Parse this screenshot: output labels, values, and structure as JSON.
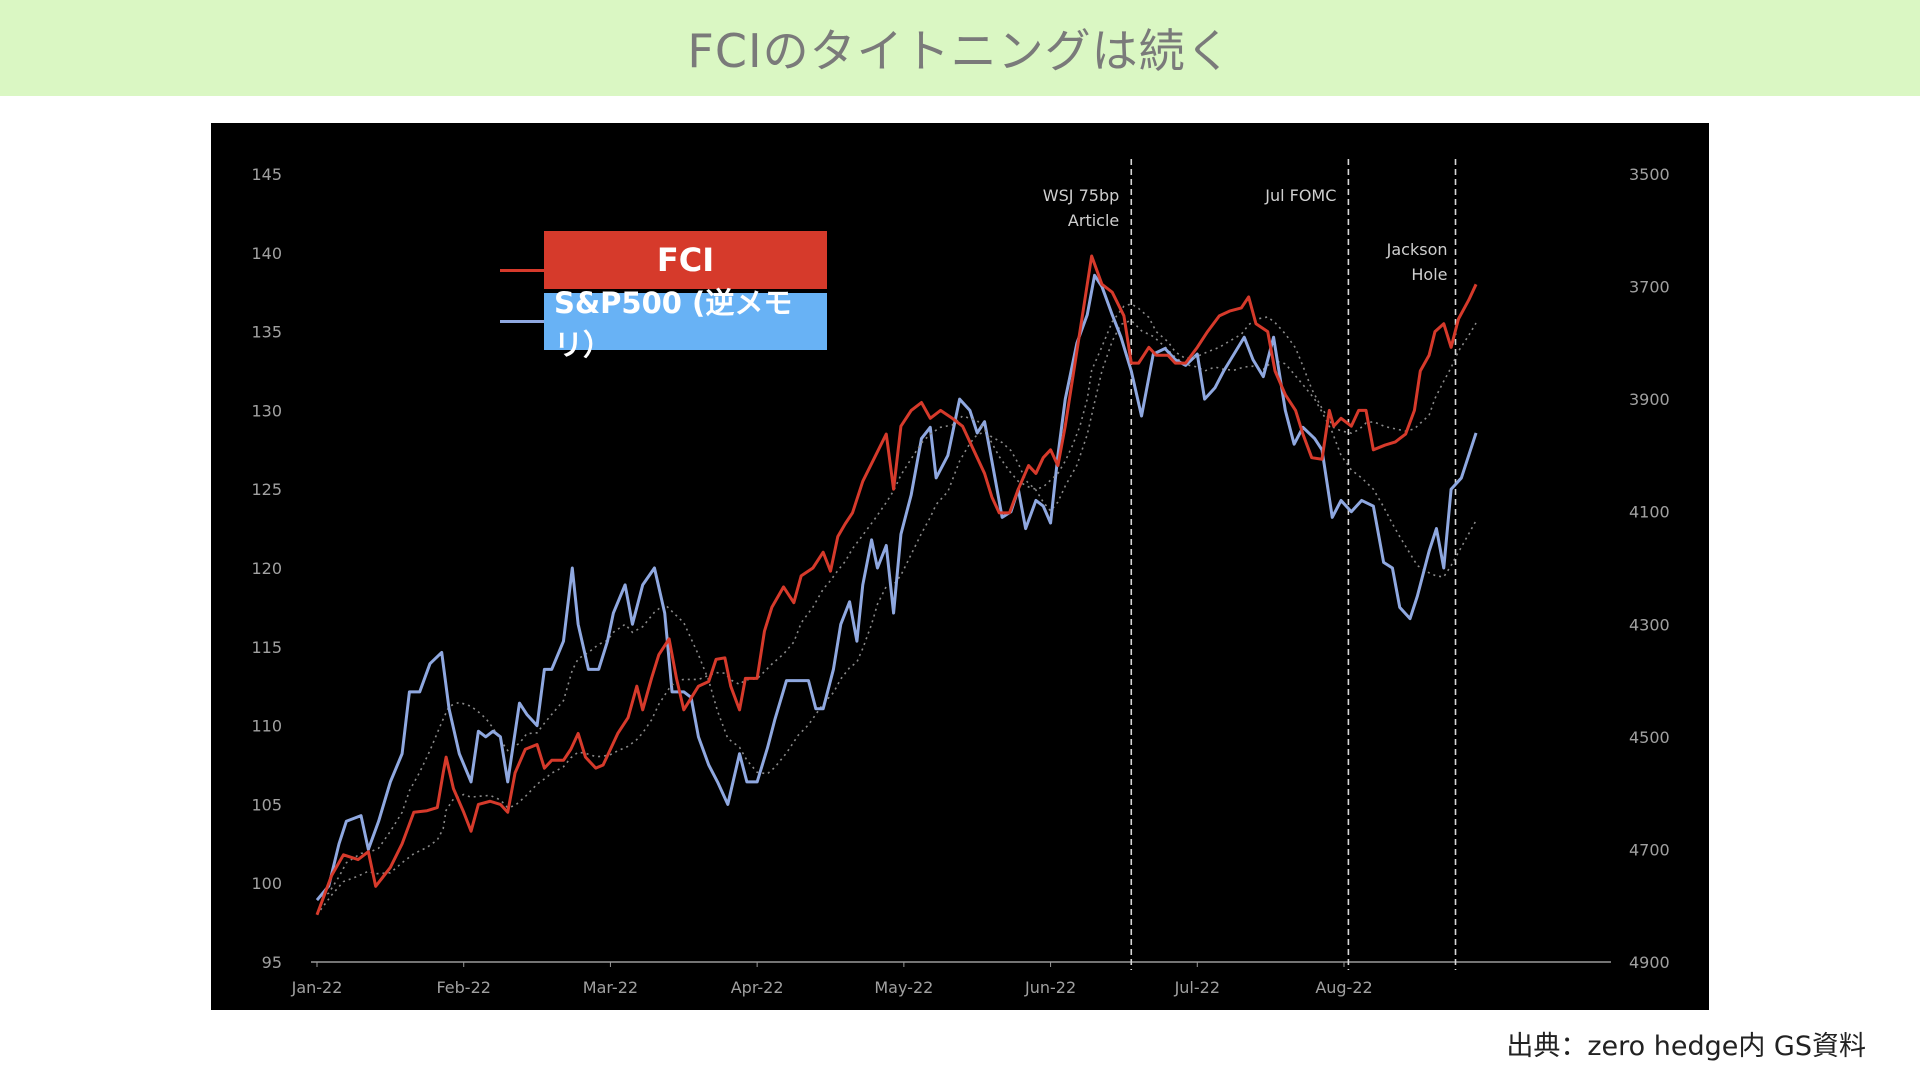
{
  "header": {
    "title": "FCIのタイトニングは続く",
    "background": "#daf7c3",
    "title_color": "#7a7a7a"
  },
  "source": "出典：zero hedge内 GS資料",
  "chart_data": {
    "type": "line",
    "title": "",
    "background": "#000000",
    "legend_position": "top-left",
    "grid": false,
    "x_labels": [
      "Jan-22",
      "Feb-22",
      "Mar-22",
      "Apr-22",
      "May-22",
      "Jun-22",
      "Jul-22",
      "Aug-22"
    ],
    "y_left": {
      "range": [
        95,
        145
      ],
      "ticks": [
        "145",
        "140",
        "135",
        "130",
        "125",
        "120",
        "115",
        "110",
        "105",
        "100",
        "95"
      ]
    },
    "y_right": {
      "range": [
        3500,
        4900
      ],
      "inverted": true,
      "ticks": [
        "3500",
        "3700",
        "3900",
        "4100",
        "4300",
        "4500",
        "4700",
        "4900"
      ]
    },
    "annotations": [
      {
        "x_month": 5.55,
        "lines": [
          "WSJ 75bp",
          "Article"
        ]
      },
      {
        "x_month": 7.03,
        "lines": [
          "Jul FOMC"
        ]
      },
      {
        "x_month": 7.76,
        "lines": [
          "Jackson",
          "Hole"
        ]
      }
    ],
    "series": [
      {
        "name": "FCI",
        "axis": "left",
        "color": "#d63a2b",
        "legend_box_color": "#d63a2b",
        "points": [
          [
            0.0,
            98.0
          ],
          [
            0.1,
            100.5
          ],
          [
            0.18,
            101.8
          ],
          [
            0.28,
            101.5
          ],
          [
            0.35,
            102.0
          ],
          [
            0.4,
            99.8
          ],
          [
            0.5,
            101.0
          ],
          [
            0.58,
            102.5
          ],
          [
            0.66,
            104.5
          ],
          [
            0.75,
            104.6
          ],
          [
            0.82,
            104.8
          ],
          [
            0.86,
            107.0
          ],
          [
            0.88,
            108.0
          ],
          [
            0.93,
            106.0
          ],
          [
            1.0,
            104.5
          ],
          [
            1.05,
            103.3
          ],
          [
            1.1,
            105.0
          ],
          [
            1.18,
            105.2
          ],
          [
            1.25,
            105.0
          ],
          [
            1.3,
            104.5
          ],
          [
            1.35,
            107.0
          ],
          [
            1.42,
            108.5
          ],
          [
            1.5,
            108.8
          ],
          [
            1.55,
            107.3
          ],
          [
            1.6,
            107.8
          ],
          [
            1.68,
            107.8
          ],
          [
            1.73,
            108.5
          ],
          [
            1.78,
            109.5
          ],
          [
            1.83,
            108.0
          ],
          [
            1.9,
            107.3
          ],
          [
            1.95,
            107.5
          ],
          [
            2.0,
            108.5
          ],
          [
            2.05,
            109.5
          ],
          [
            2.12,
            110.5
          ],
          [
            2.18,
            112.5
          ],
          [
            2.22,
            111.0
          ],
          [
            2.28,
            113.0
          ],
          [
            2.33,
            114.5
          ],
          [
            2.4,
            115.5
          ],
          [
            2.45,
            113.0
          ],
          [
            2.5,
            111.0
          ],
          [
            2.6,
            112.5
          ],
          [
            2.67,
            112.8
          ],
          [
            2.72,
            114.2
          ],
          [
            2.78,
            114.3
          ],
          [
            2.82,
            112.5
          ],
          [
            2.88,
            111.0
          ],
          [
            2.92,
            113.0
          ],
          [
            3.0,
            113.0
          ],
          [
            3.05,
            116.0
          ],
          [
            3.1,
            117.5
          ],
          [
            3.18,
            118.8
          ],
          [
            3.25,
            117.8
          ],
          [
            3.3,
            119.5
          ],
          [
            3.38,
            120.0
          ],
          [
            3.45,
            121.0
          ],
          [
            3.5,
            119.8
          ],
          [
            3.55,
            122.0
          ],
          [
            3.6,
            122.8
          ],
          [
            3.65,
            123.5
          ],
          [
            3.72,
            125.5
          ],
          [
            3.8,
            127.0
          ],
          [
            3.88,
            128.5
          ],
          [
            3.93,
            125.0
          ],
          [
            3.98,
            129.0
          ],
          [
            4.05,
            130.0
          ],
          [
            4.12,
            130.5
          ],
          [
            4.18,
            129.5
          ],
          [
            4.25,
            130.0
          ],
          [
            4.33,
            129.5
          ],
          [
            4.4,
            129.0
          ],
          [
            4.5,
            127.0
          ],
          [
            4.55,
            126.0
          ],
          [
            4.6,
            124.5
          ],
          [
            4.65,
            123.5
          ],
          [
            4.72,
            123.5
          ],
          [
            4.78,
            125.0
          ],
          [
            4.85,
            126.5
          ],
          [
            4.9,
            126.0
          ],
          [
            4.95,
            127.0
          ],
          [
            5.0,
            127.5
          ],
          [
            5.05,
            126.5
          ],
          [
            5.1,
            129.0
          ],
          [
            5.15,
            132.0
          ],
          [
            5.2,
            135.0
          ],
          [
            5.25,
            138.0
          ],
          [
            5.28,
            139.8
          ],
          [
            5.35,
            138.0
          ],
          [
            5.42,
            137.5
          ],
          [
            5.5,
            136.0
          ],
          [
            5.55,
            133.0
          ],
          [
            5.6,
            133.0
          ],
          [
            5.67,
            134.0
          ],
          [
            5.72,
            133.5
          ],
          [
            5.8,
            133.5
          ],
          [
            5.85,
            133.0
          ],
          [
            5.92,
            133.0
          ],
          [
            6.0,
            134.0
          ],
          [
            6.07,
            135.0
          ],
          [
            6.15,
            136.0
          ],
          [
            6.22,
            136.3
          ],
          [
            6.3,
            136.5
          ],
          [
            6.35,
            137.2
          ],
          [
            6.4,
            135.5
          ],
          [
            6.48,
            135.0
          ],
          [
            6.53,
            132.5
          ],
          [
            6.6,
            131.0
          ],
          [
            6.67,
            130.0
          ],
          [
            6.72,
            128.5
          ],
          [
            6.78,
            127.0
          ],
          [
            6.85,
            126.9
          ],
          [
            6.9,
            130.0
          ],
          [
            6.93,
            129.0
          ],
          [
            6.98,
            129.5
          ],
          [
            7.05,
            129.0
          ],
          [
            7.1,
            130.0
          ],
          [
            7.15,
            130.0
          ],
          [
            7.2,
            127.5
          ],
          [
            7.28,
            127.8
          ],
          [
            7.35,
            128.0
          ],
          [
            7.42,
            128.5
          ],
          [
            7.48,
            130.0
          ],
          [
            7.52,
            132.5
          ],
          [
            7.58,
            133.5
          ],
          [
            7.62,
            135.0
          ],
          [
            7.68,
            135.5
          ],
          [
            7.73,
            134.0
          ],
          [
            7.78,
            135.8
          ],
          [
            7.85,
            137.0
          ],
          [
            7.9,
            138.0
          ]
        ]
      },
      {
        "name": "S&P500 (逆メモリ）",
        "axis": "right",
        "color": "#8fa8e0",
        "legend_box_color": "#68b2f5",
        "points": [
          [
            0.0,
            4790
          ],
          [
            0.08,
            4765
          ],
          [
            0.15,
            4690
          ],
          [
            0.2,
            4650
          ],
          [
            0.3,
            4640
          ],
          [
            0.35,
            4700
          ],
          [
            0.42,
            4650
          ],
          [
            0.5,
            4580
          ],
          [
            0.58,
            4530
          ],
          [
            0.63,
            4420
          ],
          [
            0.7,
            4420
          ],
          [
            0.77,
            4370
          ],
          [
            0.85,
            4350
          ],
          [
            0.9,
            4450
          ],
          [
            0.97,
            4530
          ],
          [
            1.05,
            4580
          ],
          [
            1.1,
            4490
          ],
          [
            1.15,
            4500
          ],
          [
            1.2,
            4490
          ],
          [
            1.25,
            4500
          ],
          [
            1.3,
            4580
          ],
          [
            1.38,
            4440
          ],
          [
            1.43,
            4460
          ],
          [
            1.5,
            4480
          ],
          [
            1.55,
            4380
          ],
          [
            1.6,
            4380
          ],
          [
            1.68,
            4330
          ],
          [
            1.74,
            4200
          ],
          [
            1.78,
            4300
          ],
          [
            1.85,
            4380
          ],
          [
            1.92,
            4380
          ],
          [
            1.98,
            4330
          ],
          [
            2.02,
            4280
          ],
          [
            2.1,
            4230
          ],
          [
            2.15,
            4300
          ],
          [
            2.22,
            4230
          ],
          [
            2.3,
            4200
          ],
          [
            2.37,
            4280
          ],
          [
            2.42,
            4420
          ],
          [
            2.5,
            4420
          ],
          [
            2.55,
            4430
          ],
          [
            2.6,
            4500
          ],
          [
            2.67,
            4550
          ],
          [
            2.73,
            4580
          ],
          [
            2.8,
            4620
          ],
          [
            2.88,
            4530
          ],
          [
            2.93,
            4580
          ],
          [
            3.0,
            4580
          ],
          [
            3.07,
            4520
          ],
          [
            3.12,
            4470
          ],
          [
            3.2,
            4400
          ],
          [
            3.28,
            4400
          ],
          [
            3.35,
            4400
          ],
          [
            3.4,
            4450
          ],
          [
            3.45,
            4450
          ],
          [
            3.52,
            4380
          ],
          [
            3.57,
            4300
          ],
          [
            3.63,
            4260
          ],
          [
            3.68,
            4330
          ],
          [
            3.72,
            4230
          ],
          [
            3.78,
            4150
          ],
          [
            3.82,
            4200
          ],
          [
            3.88,
            4160
          ],
          [
            3.93,
            4280
          ],
          [
            3.98,
            4140
          ],
          [
            4.05,
            4070
          ],
          [
            4.12,
            3970
          ],
          [
            4.18,
            3950
          ],
          [
            4.22,
            4040
          ],
          [
            4.3,
            4000
          ],
          [
            4.38,
            3900
          ],
          [
            4.45,
            3920
          ],
          [
            4.5,
            3960
          ],
          [
            4.55,
            3940
          ],
          [
            4.6,
            4010
          ],
          [
            4.67,
            4110
          ],
          [
            4.73,
            4100
          ],
          [
            4.78,
            4060
          ],
          [
            4.83,
            4130
          ],
          [
            4.9,
            4080
          ],
          [
            4.95,
            4090
          ],
          [
            5.0,
            4120
          ],
          [
            5.05,
            4000
          ],
          [
            5.1,
            3900
          ],
          [
            5.18,
            3800
          ],
          [
            5.25,
            3750
          ],
          [
            5.3,
            3680
          ],
          [
            5.35,
            3700
          ],
          [
            5.42,
            3750
          ],
          [
            5.48,
            3790
          ],
          [
            5.55,
            3850
          ],
          [
            5.62,
            3930
          ],
          [
            5.7,
            3820
          ],
          [
            5.78,
            3810
          ],
          [
            5.85,
            3830
          ],
          [
            5.92,
            3840
          ],
          [
            6.0,
            3820
          ],
          [
            6.05,
            3900
          ],
          [
            6.12,
            3880
          ],
          [
            6.18,
            3850
          ],
          [
            6.25,
            3820
          ],
          [
            6.32,
            3790
          ],
          [
            6.38,
            3830
          ],
          [
            6.45,
            3860
          ],
          [
            6.52,
            3790
          ],
          [
            6.6,
            3920
          ],
          [
            6.66,
            3980
          ],
          [
            6.72,
            3950
          ],
          [
            6.8,
            3970
          ],
          [
            6.85,
            3990
          ],
          [
            6.92,
            4110
          ],
          [
            6.98,
            4080
          ],
          [
            7.05,
            4100
          ],
          [
            7.12,
            4080
          ],
          [
            7.2,
            4090
          ],
          [
            7.27,
            4190
          ],
          [
            7.33,
            4200
          ],
          [
            7.38,
            4270
          ],
          [
            7.45,
            4290
          ],
          [
            7.5,
            4250
          ],
          [
            7.58,
            4170
          ],
          [
            7.63,
            4130
          ],
          [
            7.68,
            4200
          ],
          [
            7.73,
            4060
          ],
          [
            7.8,
            4040
          ],
          [
            7.9,
            3960
          ]
        ]
      }
    ]
  }
}
